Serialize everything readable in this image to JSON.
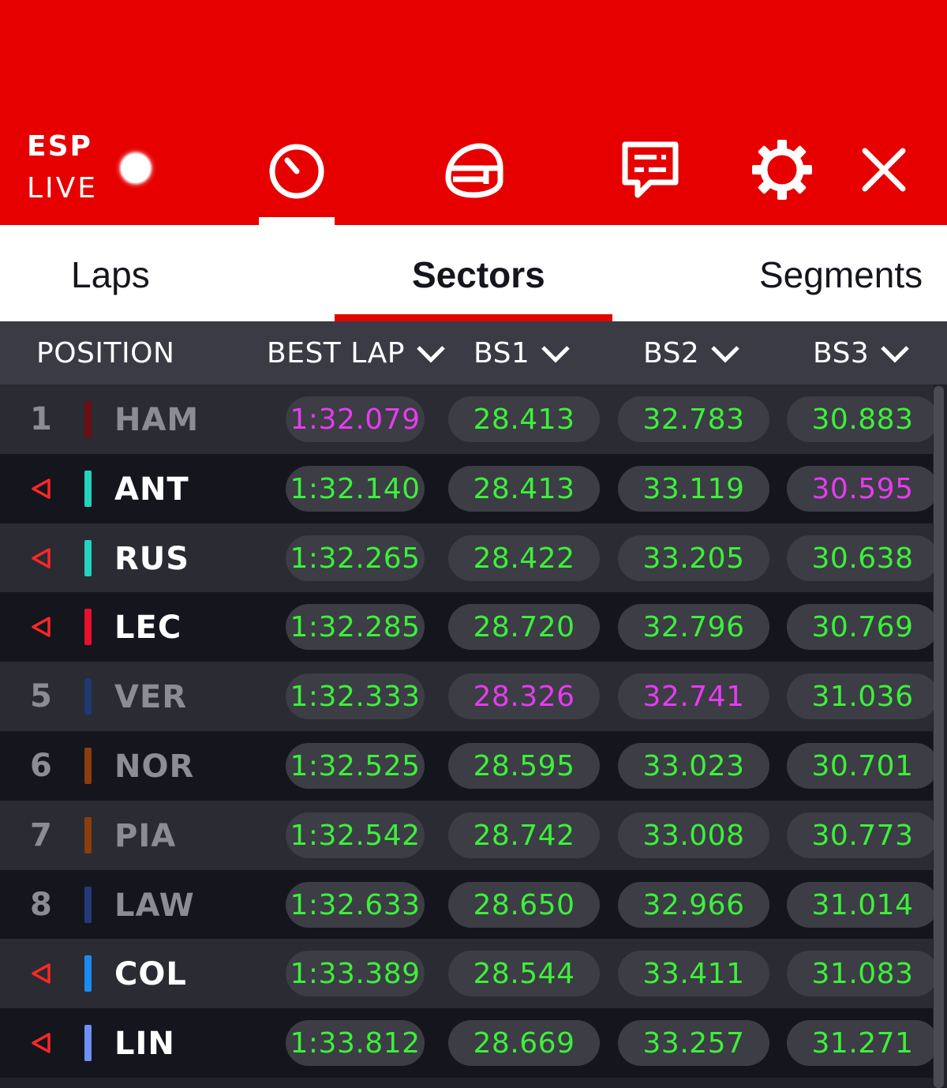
{
  "header": {
    "session_code": "ESP",
    "session_state": "LIVE",
    "icons": [
      "timer-icon",
      "helmet-icon",
      "messages-icon",
      "settings-icon",
      "close-icon"
    ]
  },
  "tabs": [
    {
      "label": "Laps",
      "active": false
    },
    {
      "label": "Sectors",
      "active": true
    },
    {
      "label": "Segments",
      "active": false
    }
  ],
  "columns": {
    "position": "POSITION",
    "best_lap": "BEST LAP",
    "bs1": "BS1",
    "bs2": "BS2",
    "bs3": "BS3"
  },
  "colors": {
    "brand_red": "#e60000",
    "personal_best_green": "#3cf03a",
    "overall_best_purple": "#e63bf0"
  },
  "rows": [
    {
      "pos": "1",
      "arrow": false,
      "code": "HAM",
      "team_color": "#6b0f16",
      "dim": true,
      "best": "1:32.079",
      "best_c": "p",
      "s1": "28.413",
      "s1_c": "g",
      "s2": "32.783",
      "s2_c": "g",
      "s3": "30.883",
      "s3_c": "g"
    },
    {
      "pos": "",
      "arrow": true,
      "code": "ANT",
      "team_color": "#22d3c0",
      "dim": false,
      "best": "1:32.140",
      "best_c": "g",
      "s1": "28.413",
      "s1_c": "g",
      "s2": "33.119",
      "s2_c": "g",
      "s3": "30.595",
      "s3_c": "p"
    },
    {
      "pos": "",
      "arrow": true,
      "code": "RUS",
      "team_color": "#22d3c0",
      "dim": false,
      "best": "1:32.265",
      "best_c": "g",
      "s1": "28.422",
      "s1_c": "g",
      "s2": "33.205",
      "s2_c": "g",
      "s3": "30.638",
      "s3_c": "g"
    },
    {
      "pos": "",
      "arrow": true,
      "code": "LEC",
      "team_color": "#e8102a",
      "dim": false,
      "best": "1:32.285",
      "best_c": "g",
      "s1": "28.720",
      "s1_c": "g",
      "s2": "32.796",
      "s2_c": "g",
      "s3": "30.769",
      "s3_c": "g"
    },
    {
      "pos": "5",
      "arrow": false,
      "code": "VER",
      "team_color": "#1f3a6e",
      "dim": true,
      "best": "1:32.333",
      "best_c": "g",
      "s1": "28.326",
      "s1_c": "p",
      "s2": "32.741",
      "s2_c": "p",
      "s3": "31.036",
      "s3_c": "g"
    },
    {
      "pos": "6",
      "arrow": false,
      "code": "NOR",
      "team_color": "#8a3e0c",
      "dim": true,
      "best": "1:32.525",
      "best_c": "g",
      "s1": "28.595",
      "s1_c": "g",
      "s2": "33.023",
      "s2_c": "g",
      "s3": "30.701",
      "s3_c": "g"
    },
    {
      "pos": "7",
      "arrow": false,
      "code": "PIA",
      "team_color": "#8a3e0c",
      "dim": true,
      "best": "1:32.542",
      "best_c": "g",
      "s1": "28.742",
      "s1_c": "g",
      "s2": "33.008",
      "s2_c": "g",
      "s3": "30.773",
      "s3_c": "g"
    },
    {
      "pos": "8",
      "arrow": false,
      "code": "LAW",
      "team_color": "#233a78",
      "dim": true,
      "best": "1:32.633",
      "best_c": "g",
      "s1": "28.650",
      "s1_c": "g",
      "s2": "32.966",
      "s2_c": "g",
      "s3": "31.014",
      "s3_c": "g"
    },
    {
      "pos": "",
      "arrow": true,
      "code": "COL",
      "team_color": "#1a8cf0",
      "dim": false,
      "best": "1:33.389",
      "best_c": "g",
      "s1": "28.544",
      "s1_c": "g",
      "s2": "33.411",
      "s2_c": "g",
      "s3": "31.083",
      "s3_c": "g"
    },
    {
      "pos": "",
      "arrow": true,
      "code": "LIN",
      "team_color": "#6e8ff5",
      "dim": false,
      "best": "1:33.812",
      "best_c": "g",
      "s1": "28.669",
      "s1_c": "g",
      "s2": "33.257",
      "s2_c": "g",
      "s3": "31.271",
      "s3_c": "g"
    }
  ]
}
